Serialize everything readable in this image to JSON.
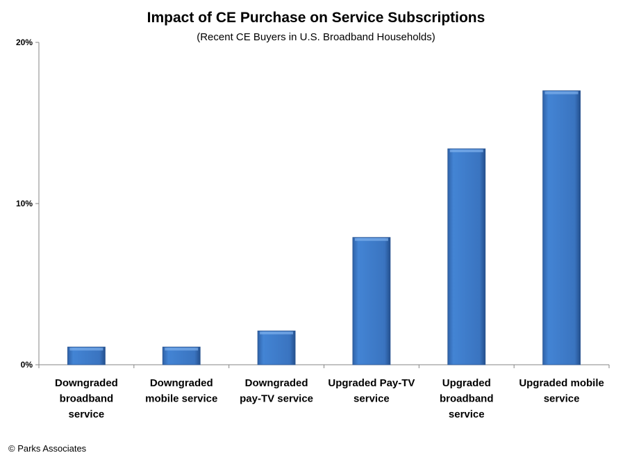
{
  "chart_data": {
    "type": "bar",
    "title": "Impact of CE Purchase on Service Subscriptions",
    "subtitle": "(Recent CE Buyers in U.S. Broadband Households)",
    "categories": [
      [
        "Downgraded",
        "broadband",
        "service"
      ],
      [
        "Downgraded",
        "mobile service"
      ],
      [
        "Downgraded",
        "pay-TV service"
      ],
      [
        "Upgraded Pay-TV",
        "service"
      ],
      [
        "Upgraded",
        "broadband",
        "service"
      ],
      [
        "Upgraded mobile",
        "service"
      ]
    ],
    "values": [
      1.1,
      1.1,
      2.1,
      7.9,
      13.4,
      17.0
    ],
    "unit": "%",
    "ylim": [
      0,
      20
    ],
    "yticks": [
      "0%",
      "10%",
      "20%"
    ],
    "grid": false,
    "bar_color": "#3f7ac6",
    "credit": "© Parks Associates"
  }
}
